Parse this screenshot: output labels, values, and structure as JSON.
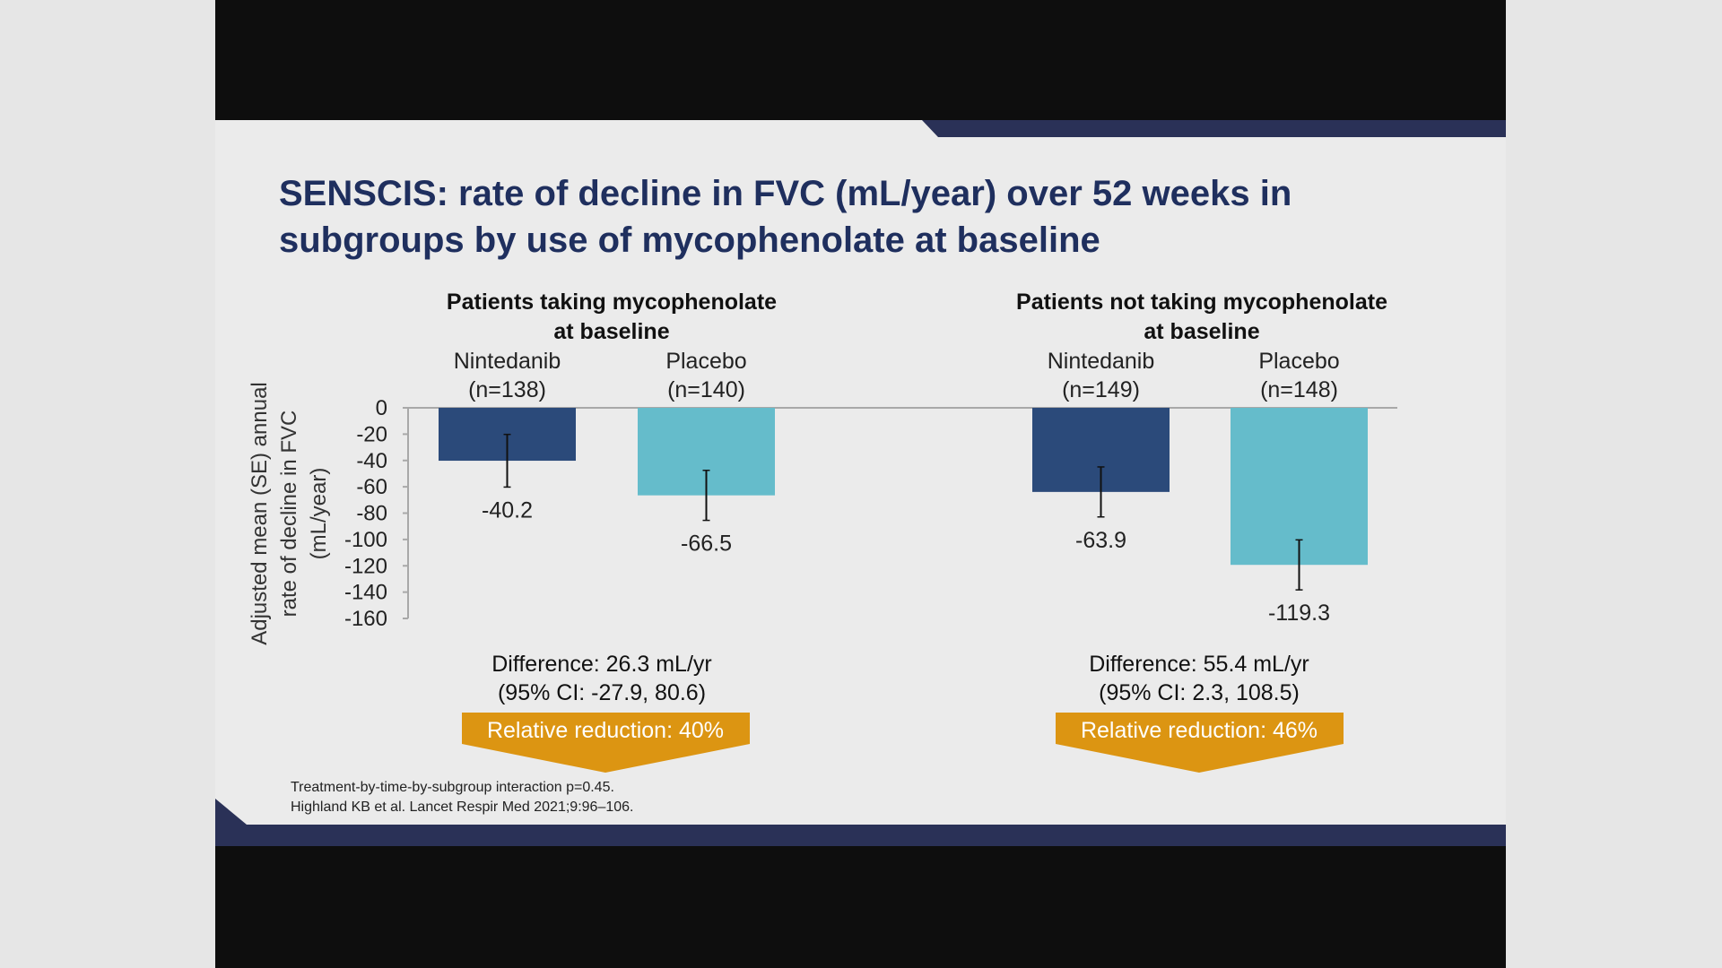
{
  "slide": {
    "title": "SENSCIS: rate of decline in FVC (mL/year) over 52 weeks in subgroups by use of mycophenolate at baseline",
    "footnotes": [
      "Treatment-by-time-by-subgroup interaction p=0.45.",
      "Highland KB et al. Lancet Respir Med 2021;9:96–106."
    ]
  },
  "colors": {
    "nintedanib": "#2b4a7a",
    "placebo": "#65bccb",
    "accent": "#dc9512",
    "title": "#1f2f5e",
    "navy_band": "#2a3157"
  },
  "chart_data": {
    "type": "bar",
    "title": "SENSCIS: rate of decline in FVC (mL/year) over 52 weeks in subgroups by use of mycophenolate at baseline",
    "ylabel": [
      "Adjusted mean (SE) annual",
      "rate of decline in FVC",
      "(mL/year)"
    ],
    "ylim": [
      -160,
      0
    ],
    "yticks": [
      "0",
      "-20",
      "-40",
      "-60",
      "-80",
      "-100",
      "-120",
      "-140",
      "-160"
    ],
    "grid": false,
    "groups": [
      {
        "title": [
          "Patients taking mycophenolate",
          "at baseline"
        ],
        "bars": [
          {
            "name": "Nintedanib",
            "n": "(n=138)",
            "value": -40.2,
            "se": 20,
            "label": "-40.2",
            "series": "nintedanib"
          },
          {
            "name": "Placebo",
            "n": "(n=140)",
            "value": -66.5,
            "se": 19,
            "label": "-66.5",
            "series": "placebo"
          }
        ],
        "difference": "Difference: 26.3 mL/yr",
        "ci": "(95% CI: -27.9, 80.6)",
        "relative_reduction": "Relative reduction: 40%"
      },
      {
        "title": [
          "Patients not taking mycophenolate",
          "at baseline"
        ],
        "bars": [
          {
            "name": "Nintedanib",
            "n": "(n=149)",
            "value": -63.9,
            "se": 19,
            "label": "-63.9",
            "series": "nintedanib"
          },
          {
            "name": "Placebo",
            "n": "(n=148)",
            "value": -119.3,
            "se": 19,
            "label": "-119.3",
            "series": "placebo"
          }
        ],
        "difference": "Difference: 55.4 mL/yr",
        "ci": "(95% CI: 2.3, 108.5)",
        "relative_reduction": "Relative reduction: 46%"
      }
    ]
  }
}
